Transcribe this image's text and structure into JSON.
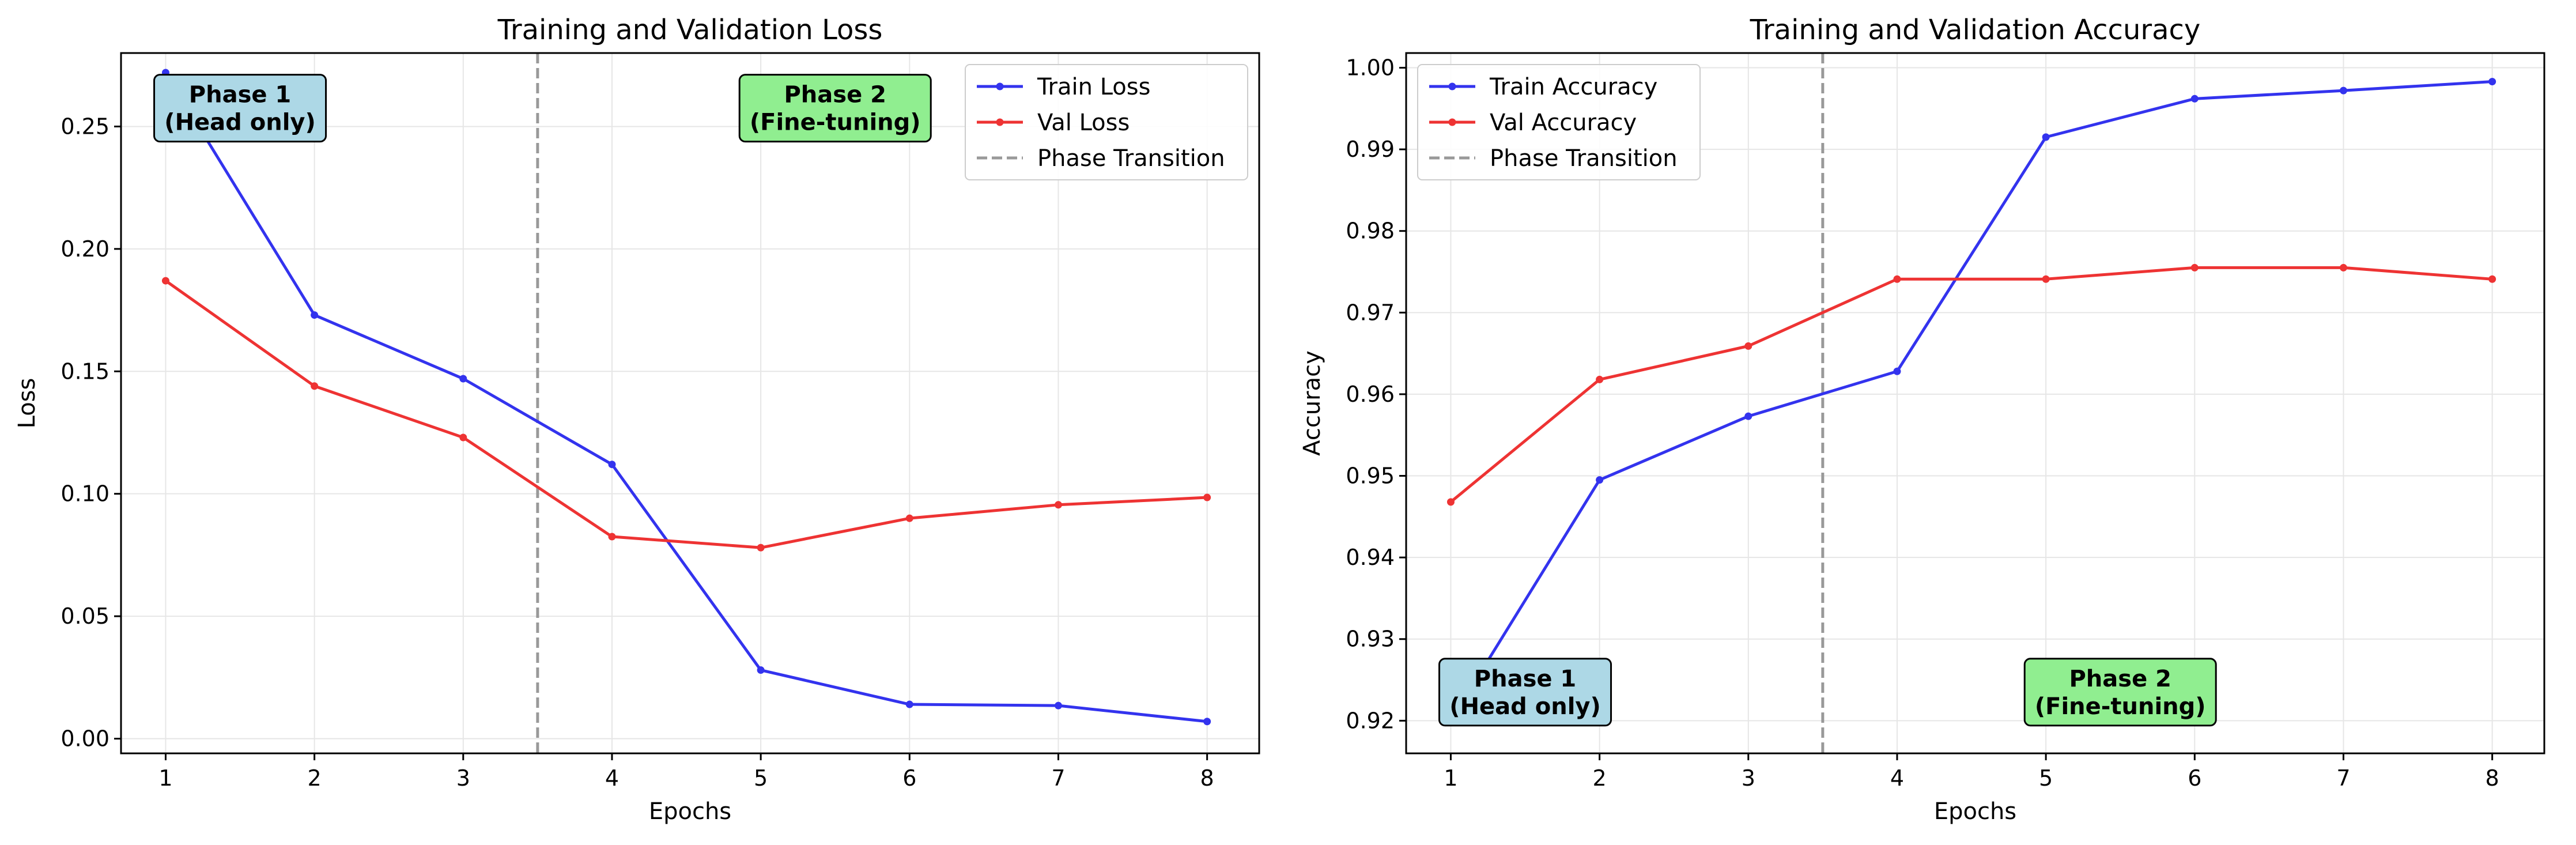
{
  "figure": {
    "colors": {
      "train": "#3333ee",
      "val": "#ee3333",
      "transition": "#999999",
      "phase1_box": "#add8e6",
      "phase2_box": "#90ee90",
      "grid": "#e6e6e6"
    }
  },
  "chart_data": [
    {
      "type": "line",
      "title": "Training and Validation Loss",
      "xlabel": "Epochs",
      "ylabel": "Loss",
      "x": [
        1,
        2,
        3,
        4,
        5,
        6,
        7,
        8
      ],
      "xlim": [
        0.7,
        8.35
      ],
      "ylim": [
        -0.006,
        0.28
      ],
      "xticks": [
        1,
        2,
        3,
        4,
        5,
        6,
        7,
        8
      ],
      "xtick_labels": [
        "1",
        "2",
        "3",
        "4",
        "5",
        "6",
        "7",
        "8"
      ],
      "yticks": [
        0.0,
        0.05,
        0.1,
        0.15,
        0.2,
        0.25
      ],
      "ytick_labels": [
        "0.00",
        "0.05",
        "0.10",
        "0.15",
        "0.20",
        "0.25"
      ],
      "grid": true,
      "legend_position": "top-right",
      "phase_transition_x": 3.5,
      "series": [
        {
          "name": "Train Loss",
          "color": "#3333ee",
          "values": [
            0.272,
            0.173,
            0.147,
            0.112,
            0.028,
            0.014,
            0.0135,
            0.007
          ]
        },
        {
          "name": "Val Loss",
          "color": "#ee3333",
          "values": [
            0.187,
            0.144,
            0.123,
            0.0825,
            0.078,
            0.09,
            0.0955,
            0.0985
          ]
        }
      ],
      "transition_label": "Phase Transition",
      "annotations": [
        {
          "line1": "Phase 1",
          "line2": "(Head only)",
          "x": 1.5,
          "y": 0.2575,
          "box_color": "#add8e6"
        },
        {
          "line1": "Phase 2",
          "line2": "(Fine-tuning)",
          "x": 5.5,
          "y": 0.2575,
          "box_color": "#90ee90"
        }
      ]
    },
    {
      "type": "line",
      "title": "Training and Validation Accuracy",
      "xlabel": "Epochs",
      "ylabel": "Accuracy",
      "x": [
        1,
        2,
        3,
        4,
        5,
        6,
        7,
        8
      ],
      "xlim": [
        0.7,
        8.35
      ],
      "ylim": [
        0.916,
        1.0018
      ],
      "xticks": [
        1,
        2,
        3,
        4,
        5,
        6,
        7,
        8
      ],
      "xtick_labels": [
        "1",
        "2",
        "3",
        "4",
        "5",
        "6",
        "7",
        "8"
      ],
      "yticks": [
        0.92,
        0.93,
        0.94,
        0.95,
        0.96,
        0.97,
        0.98,
        0.99,
        1.0
      ],
      "ytick_labels": [
        "0.92",
        "0.93",
        "0.94",
        "0.95",
        "0.96",
        "0.97",
        "0.98",
        "0.99",
        "1.00"
      ],
      "grid": true,
      "legend_position": "top-left",
      "phase_transition_x": 3.5,
      "series": [
        {
          "name": "Train Accuracy",
          "color": "#3333ee",
          "values": [
            0.92,
            0.9495,
            0.9573,
            0.9628,
            0.9915,
            0.9962,
            0.9972,
            0.9983
          ]
        },
        {
          "name": "Val Accuracy",
          "color": "#ee3333",
          "values": [
            0.9468,
            0.9618,
            0.9659,
            0.9741,
            0.9741,
            0.9755,
            0.9755,
            0.9741
          ]
        }
      ],
      "transition_label": "Phase Transition",
      "annotations": [
        {
          "line1": "Phase 1",
          "line2": "(Head only)",
          "x": 1.5,
          "y": 0.9235,
          "box_color": "#add8e6"
        },
        {
          "line1": "Phase 2",
          "line2": "(Fine-tuning)",
          "x": 5.5,
          "y": 0.9235,
          "box_color": "#90ee90"
        }
      ]
    }
  ]
}
